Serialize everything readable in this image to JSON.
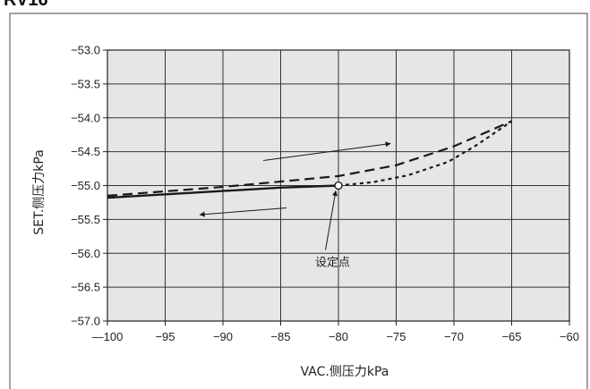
{
  "header": {
    "fragment": "RV16"
  },
  "chart_data": {
    "type": "line",
    "title": "",
    "xlabel": "VAC.侧压力kPa",
    "ylabel": "SET.侧压力kPa",
    "xlim": [
      -100,
      -60
    ],
    "ylim": [
      -57.0,
      -53.0
    ],
    "y_inverted": true,
    "x_ticks": [
      -100,
      -95,
      -90,
      -85,
      -80,
      -75,
      -70,
      -65,
      -60
    ],
    "x_tick_labels": [
      "—100",
      "−95",
      "−90",
      "−85",
      "−80",
      "−75",
      "−70",
      "−65",
      "−60"
    ],
    "y_ticks": [
      -53.0,
      -53.5,
      -54.0,
      -54.5,
      -55.0,
      -55.5,
      -56.0,
      -56.5,
      -57.0
    ],
    "y_tick_labels": [
      "−53.0",
      "−53.5",
      "−54.0",
      "−54.5",
      "−55.0",
      "−55.5",
      "−56.0",
      "−56.5",
      "−57.0"
    ],
    "grid": true,
    "plot_background": "#e6e6e6",
    "line_color": "#1a1a1a",
    "series": [
      {
        "style": "solid",
        "points": [
          [
            -100,
            -55.18
          ],
          [
            -92,
            -55.1
          ],
          [
            -85,
            -55.03
          ],
          [
            -80,
            -55.0
          ]
        ]
      },
      {
        "style": "dashed",
        "points": [
          [
            -100,
            -55.15
          ],
          [
            -90,
            -55.02
          ],
          [
            -85,
            -54.94
          ],
          [
            -80,
            -54.86
          ],
          [
            -75,
            -54.7
          ],
          [
            -70,
            -54.42
          ],
          [
            -65,
            -54.05
          ]
        ]
      },
      {
        "style": "dotted",
        "points": [
          [
            -80,
            -55.0
          ],
          [
            -77,
            -54.95
          ],
          [
            -74,
            -54.85
          ],
          [
            -70.5,
            -54.65
          ],
          [
            -68,
            -54.4
          ],
          [
            -65,
            -54.05
          ]
        ]
      }
    ],
    "set_point": {
      "x": -80,
      "y": -55.0,
      "label": "设定点",
      "label_x": -80.5,
      "label_y": -56.15
    },
    "arrows": [
      {
        "from": [
          -86.5,
          -54.63
        ],
        "to": [
          -75.5,
          -54.38
        ]
      },
      {
        "from": [
          -84.5,
          -55.33
        ],
        "to": [
          -92,
          -55.43
        ]
      }
    ]
  }
}
